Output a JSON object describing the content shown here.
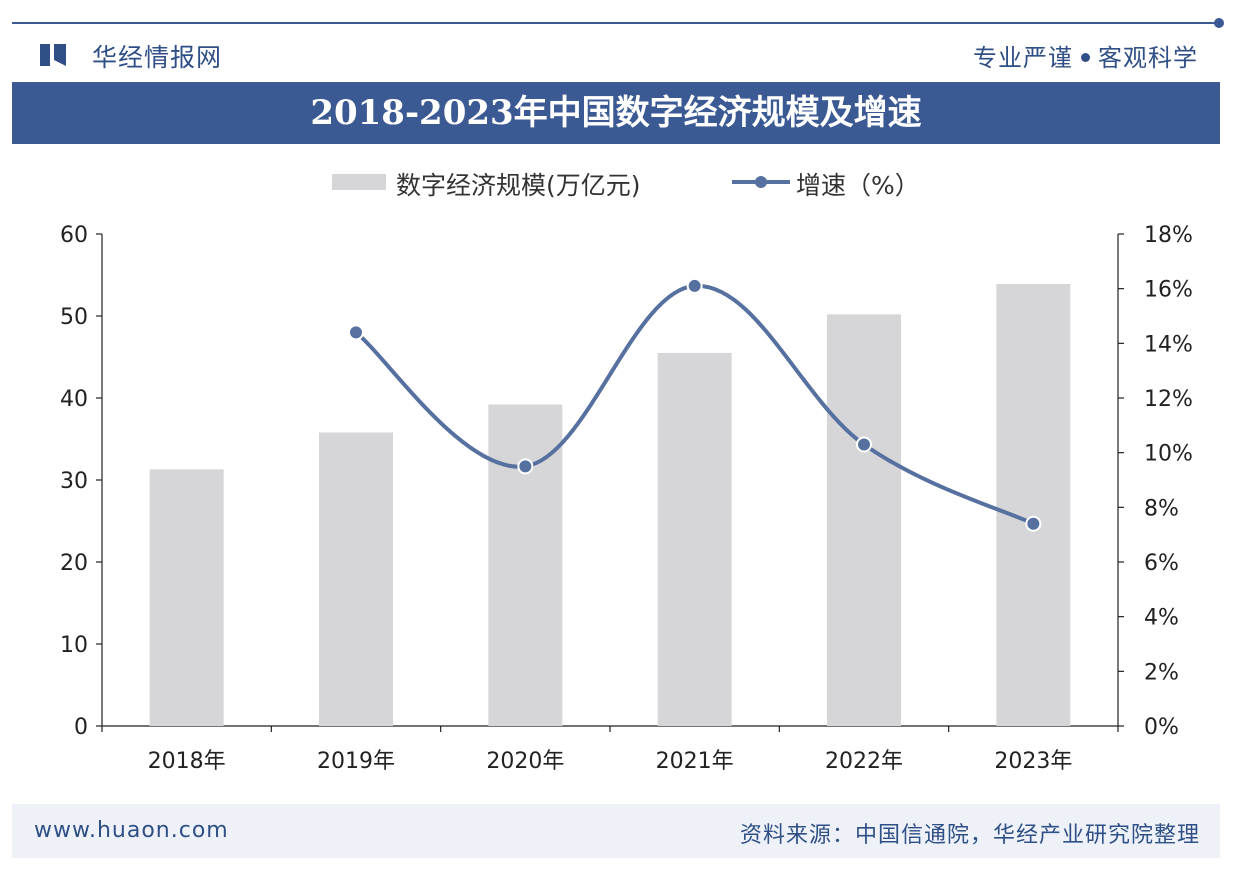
{
  "header": {
    "brand": "华经情报网",
    "slogan_left": "专业严谨",
    "slogan_right": "客观科学"
  },
  "footer": {
    "url": "www.huaon.com",
    "source": "资料来源：中国信通院，华经产业研究院整理"
  },
  "colors": {
    "accent": "#3b5a94",
    "bar": "#d6d6d9",
    "line": "#5670a0"
  },
  "chart_data": {
    "type": "bar",
    "title": "2018-2023年中国数字经济规模及增速",
    "categories": [
      "2018年",
      "2019年",
      "2020年",
      "2021年",
      "2022年",
      "2023年"
    ],
    "series": [
      {
        "name": "数字经济规模(万亿元)",
        "type": "bar",
        "axis": "left",
        "values": [
          31.3,
          35.8,
          39.2,
          45.5,
          50.2,
          53.9
        ]
      },
      {
        "name": "增速（%）",
        "type": "line",
        "axis": "right",
        "values": [
          null,
          14.4,
          9.5,
          16.1,
          10.3,
          7.4
        ]
      }
    ],
    "y_left": {
      "ylim": [
        0,
        60
      ],
      "ticks": [
        "0",
        "10",
        "20",
        "30",
        "40",
        "50",
        "60"
      ]
    },
    "y_right": {
      "ylim": [
        0,
        18
      ],
      "ticks": [
        "0%",
        "2%",
        "4%",
        "6%",
        "8%",
        "10%",
        "12%",
        "14%",
        "16%",
        "18%"
      ]
    },
    "legend": "top-center",
    "grid": false
  }
}
